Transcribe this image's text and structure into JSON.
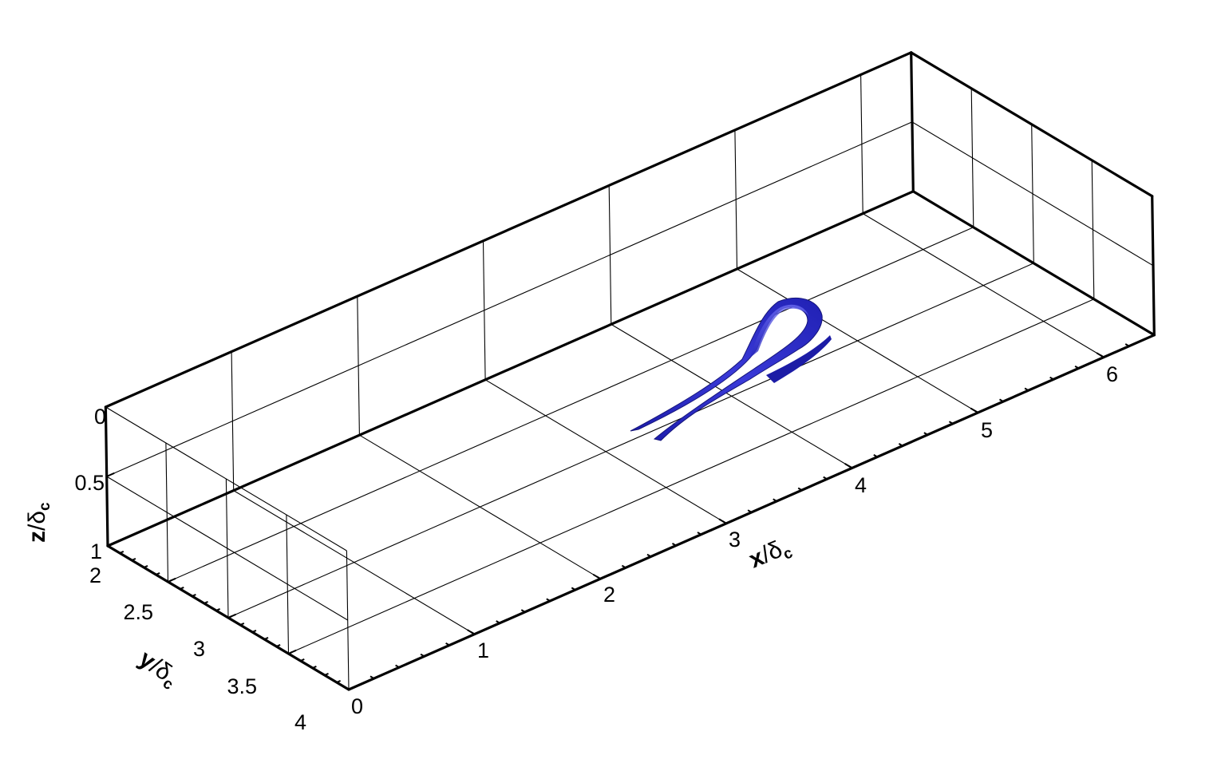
{
  "chart_data": {
    "type": "isosurface-3d",
    "title": "",
    "axes": {
      "x": {
        "var": "x",
        "unit": "δ",
        "unit_sub": "c",
        "range": [
          0,
          6.4
        ],
        "ticks": [
          "0",
          "1",
          "2",
          "3",
          "4",
          "5",
          "6"
        ]
      },
      "y": {
        "var": "y",
        "unit": "δ",
        "unit_sub": "c",
        "range": [
          2,
          4
        ],
        "ticks": [
          "2",
          "2.5",
          "3",
          "3.5",
          "4"
        ]
      },
      "z": {
        "var": "z",
        "unit": "δ",
        "unit_sub": "c",
        "range": [
          0,
          1
        ],
        "ticks": [
          "0",
          "0.5",
          "1"
        ]
      }
    },
    "grid": true,
    "surface": {
      "description": "hairpin vortex isosurface",
      "color": "#2424c8",
      "x_extent": [
        2.3,
        4.6
      ],
      "y_extent": [
        2.7,
        3.4
      ],
      "z_extent": [
        0.0,
        0.55
      ]
    }
  }
}
